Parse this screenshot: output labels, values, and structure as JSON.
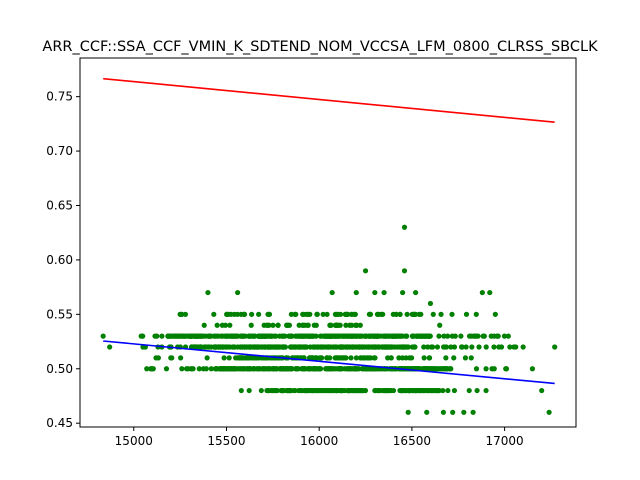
{
  "chart_data": {
    "type": "scatter",
    "title": "ARR_CCF::SSA_CCF_VMIN_K_SDTEND_NOM_VCCSA_LFM_0800_CLRSS_SBCLK",
    "xlabel": "",
    "ylabel": "",
    "xlim": [
      14710,
      17385
    ],
    "ylim": [
      0.4465,
      0.7855
    ],
    "xticks": [
      15000,
      15500,
      16000,
      16500,
      17000
    ],
    "yticks": [
      0.45,
      0.5,
      0.55,
      0.6,
      0.65,
      0.7,
      0.75
    ],
    "xtick_labels": [
      "15000",
      "15500",
      "16000",
      "16500",
      "17000"
    ],
    "ytick_labels": [
      "0.45",
      "0.50",
      "0.55",
      "0.60",
      "0.65",
      "0.70",
      "0.75"
    ],
    "grid": false,
    "colors": {
      "points": "#008000",
      "fit_line": "#0000ff",
      "limit_line": "#ff0000",
      "axes": "#000000"
    },
    "series": [
      {
        "kind": "points",
        "bands": [
          {
            "y": 0.48,
            "x_start": 15580,
            "x_end": 16900,
            "dense_start": 15720,
            "dense_end": 16650,
            "count": 220
          },
          {
            "y": 0.5,
            "x_start": 15070,
            "x_end": 17010,
            "dense_start": 15440,
            "dense_end": 16720,
            "count": 320
          },
          {
            "y": 0.51,
            "x_start": 15120,
            "x_end": 16820,
            "dense_start": 15560,
            "dense_end": 16300,
            "count": 120
          },
          {
            "y": 0.52,
            "x_start": 15050,
            "x_end": 17050,
            "dense_start": 15310,
            "dense_end": 16520,
            "count": 330
          },
          {
            "y": 0.53,
            "x_start": 15040,
            "x_end": 17020,
            "dense_start": 15180,
            "dense_end": 16600,
            "count": 320
          },
          {
            "y": 0.54,
            "x_start": 15380,
            "x_end": 16650,
            "dense_start": 15600,
            "dense_end": 16250,
            "count": 40
          },
          {
            "y": 0.55,
            "x_start": 15250,
            "x_end": 16950,
            "dense_start": 15450,
            "dense_end": 16550,
            "count": 70
          }
        ],
        "extra_points": [
          [
            14835,
            0.53
          ],
          [
            15050,
            0.52
          ],
          [
            15100,
            0.5
          ],
          [
            15200,
            0.52
          ],
          [
            15320,
            0.5
          ],
          [
            15400,
            0.57
          ],
          [
            15560,
            0.57
          ],
          [
            16070,
            0.57
          ],
          [
            16200,
            0.57
          ],
          [
            16250,
            0.59
          ],
          [
            16300,
            0.57
          ],
          [
            16350,
            0.57
          ],
          [
            16450,
            0.57
          ],
          [
            16520,
            0.57
          ],
          [
            16600,
            0.56
          ],
          [
            16880,
            0.57
          ],
          [
            16920,
            0.57
          ],
          [
            16460,
            0.63
          ],
          [
            16460,
            0.59
          ],
          [
            16480,
            0.46
          ],
          [
            16580,
            0.46
          ],
          [
            16670,
            0.46
          ],
          [
            16720,
            0.46
          ],
          [
            16780,
            0.46
          ],
          [
            16830,
            0.46
          ],
          [
            17060,
            0.52
          ],
          [
            17100,
            0.52
          ],
          [
            17150,
            0.5
          ],
          [
            17240,
            0.46
          ],
          [
            17270,
            0.52
          ],
          [
            17200,
            0.48
          ],
          [
            14870,
            0.52
          ]
        ]
      },
      {
        "kind": "line",
        "color": "#0000ff",
        "x": [
          14835,
          17270
        ],
        "y": [
          0.5255,
          0.4865
        ]
      },
      {
        "kind": "line",
        "color": "#ff0000",
        "x": [
          14835,
          17270
        ],
        "y": [
          0.7665,
          0.7265
        ]
      }
    ]
  }
}
